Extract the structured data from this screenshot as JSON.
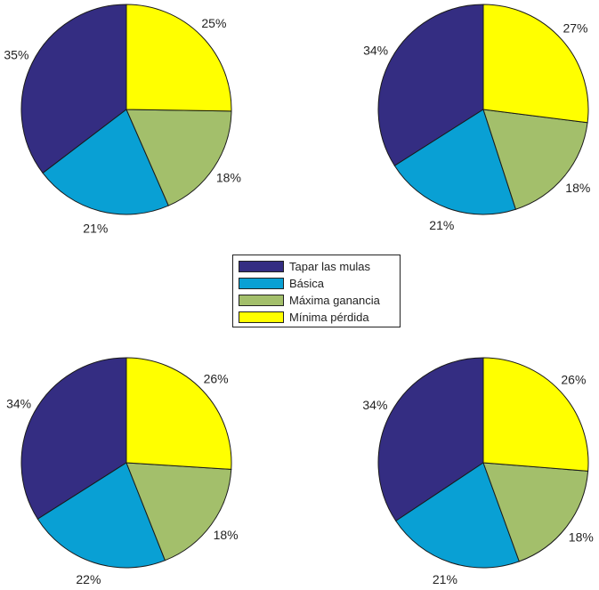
{
  "chart_data": {
    "type": "pie",
    "legend": {
      "placement": "center",
      "entries": [
        {
          "label": "Tapar las mulas",
          "color": "#342d82"
        },
        {
          "label": "Básica",
          "color": "#09a0d4"
        },
        {
          "label": "Máxima ganancia",
          "color": "#a3bf6b"
        },
        {
          "label": "Mínima pérdida",
          "color": "#ffff00"
        }
      ]
    },
    "charts": [
      {
        "categories": [
          "Tapar las mulas",
          "Básica",
          "Máxima ganancia",
          "Mínima pérdida"
        ],
        "values": [
          35,
          21,
          18,
          25
        ],
        "labels": [
          "35%",
          "21%",
          "18%",
          "25%"
        ]
      },
      {
        "categories": [
          "Tapar las mulas",
          "Básica",
          "Máxima ganancia",
          "Mínima pérdida"
        ],
        "values": [
          34,
          21,
          18,
          27
        ],
        "labels": [
          "34%",
          "21%",
          "18%",
          "27%"
        ]
      },
      {
        "categories": [
          "Tapar las mulas",
          "Básica",
          "Máxima ganancia",
          "Mínima pérdida"
        ],
        "values": [
          34,
          22,
          18,
          26
        ],
        "labels": [
          "34%",
          "22%",
          "18%",
          "26%"
        ]
      },
      {
        "categories": [
          "Tapar las mulas",
          "Básica",
          "Máxima ganancia",
          "Mínima pérdida"
        ],
        "values": [
          34,
          21,
          18,
          26
        ],
        "labels": [
          "34%",
          "21%",
          "18%",
          "26%"
        ]
      }
    ]
  }
}
